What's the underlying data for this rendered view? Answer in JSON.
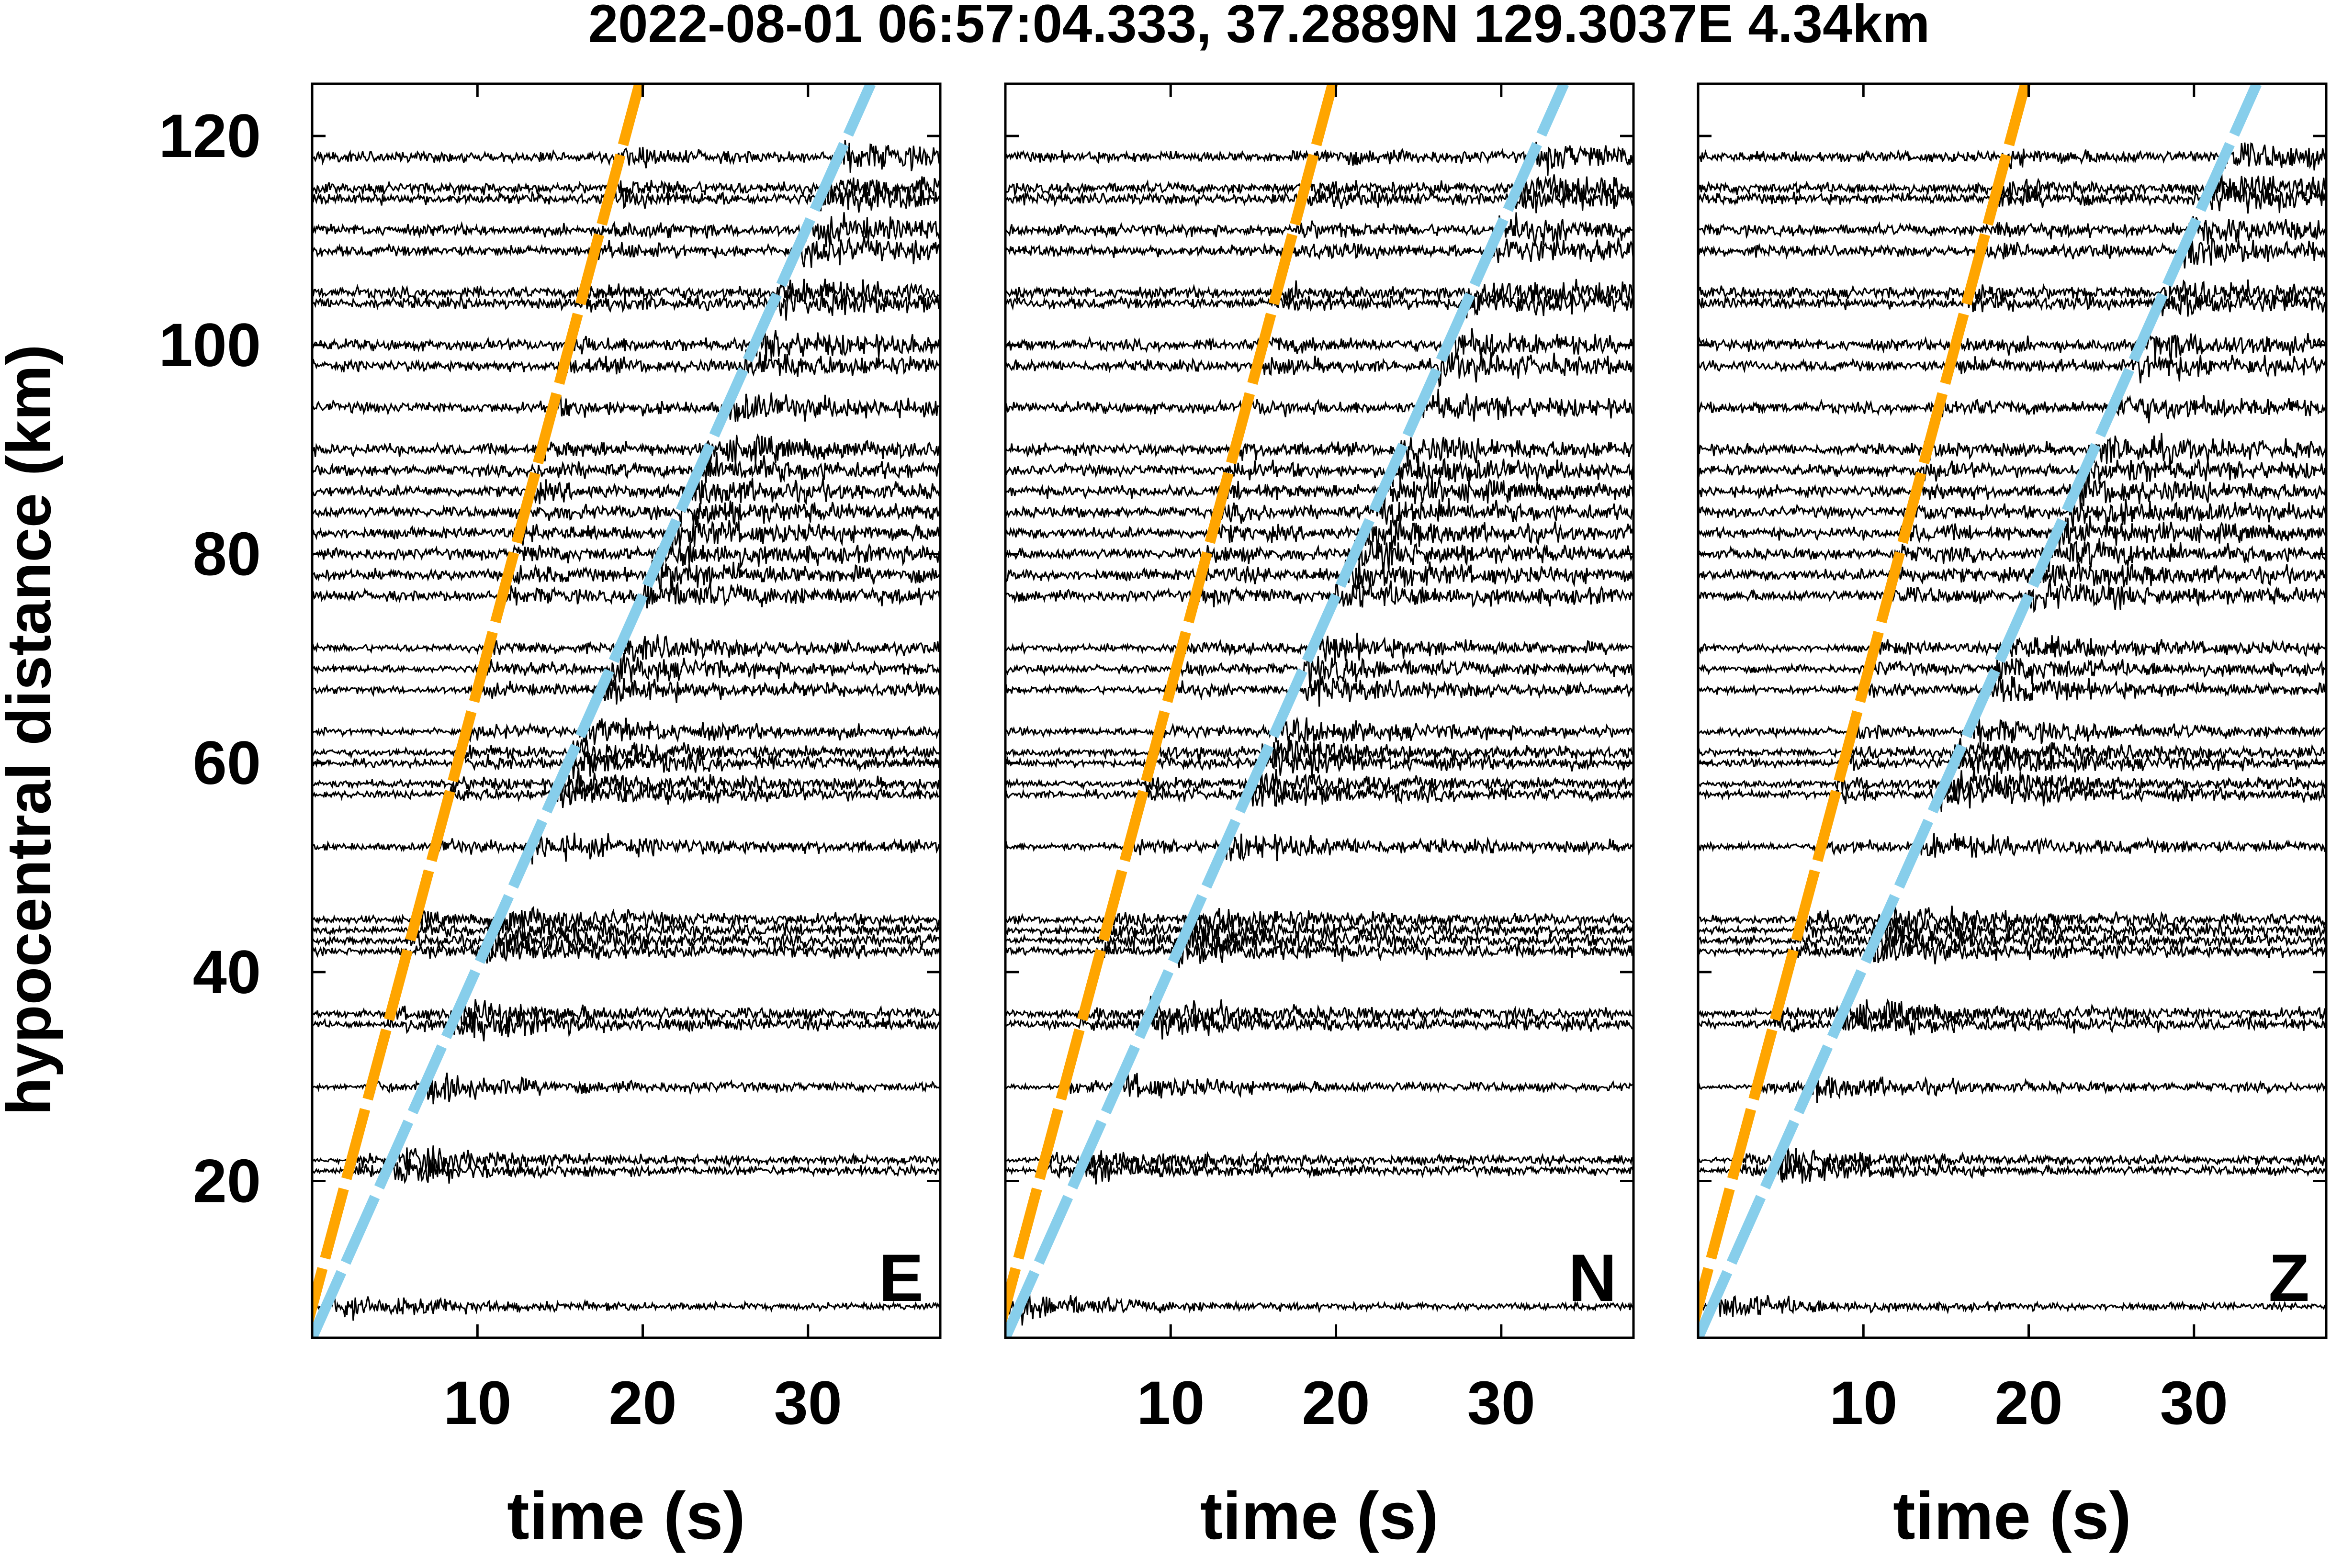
{
  "title": "2022-08-01 06:57:04.333, 37.2889N 129.3037E 4.34km",
  "colors": {
    "p_wave": "#FFA500",
    "s_wave": "#87CEEB",
    "trace": "#000000"
  },
  "chart_data": {
    "type": "line",
    "title": "2022-08-01 06:57:04.333, 37.2889N 129.3037E 4.34km",
    "ylabel": "hypocentral distance (km)",
    "ylim": [
      5,
      125
    ],
    "yticks": [
      "20",
      "40",
      "60",
      "80",
      "100",
      "120"
    ],
    "xticks": [
      "10",
      "20",
      "30"
    ],
    "panels": [
      {
        "component": "E",
        "xlabel": "time (s)",
        "xlim": [
          0,
          38
        ],
        "moveout": {
          "p": {
            "x": [
              -0.5,
              19.8
            ],
            "y": [
              5,
              125
            ]
          },
          "s": {
            "x": [
              0,
              33.8
            ],
            "y": [
              5,
              125
            ]
          }
        }
      },
      {
        "component": "N",
        "xlabel": "time (s)",
        "xlim": [
          0,
          38
        ],
        "moveout": {
          "p": {
            "x": [
              -0.5,
              19.8
            ],
            "y": [
              5,
              125
            ]
          },
          "s": {
            "x": [
              0,
              33.8
            ],
            "y": [
              5,
              125
            ]
          }
        }
      },
      {
        "component": "Z",
        "xlabel": "time (s)",
        "xlim": [
          0,
          38
        ],
        "moveout": {
          "p": {
            "x": [
              -0.5,
              19.8
            ],
            "y": [
              5,
              125
            ]
          },
          "s": {
            "x": [
              0,
              33.8
            ],
            "y": [
              5,
              125
            ]
          }
        }
      }
    ],
    "station_distances_km": [
      8,
      21,
      22,
      29,
      35,
      36,
      42,
      43,
      44,
      45,
      52,
      57,
      58,
      60,
      61,
      63,
      67,
      69,
      71,
      76,
      78,
      80,
      82,
      84,
      86,
      88,
      90,
      94,
      98,
      100,
      104,
      105,
      109,
      111,
      114,
      115,
      118
    ]
  }
}
